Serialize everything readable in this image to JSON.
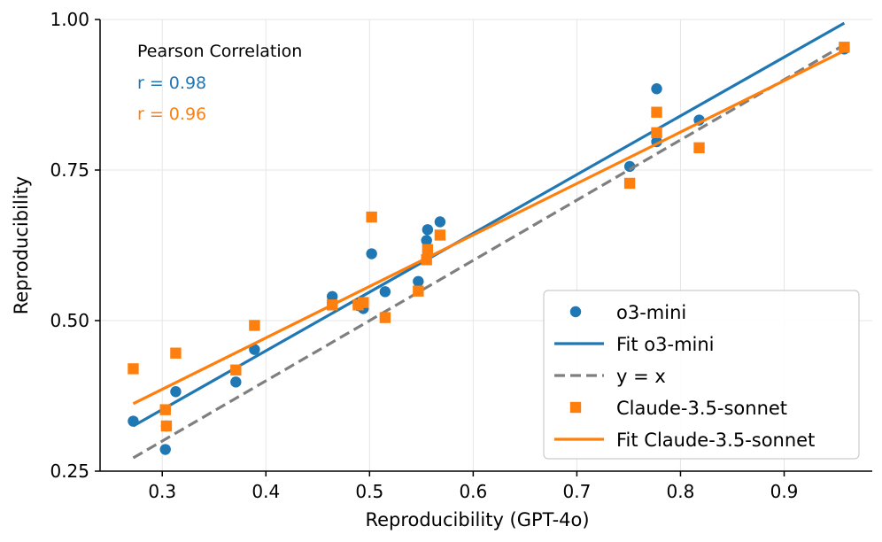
{
  "chart_data": {
    "type": "scatter",
    "xlabel": "Reproducibility (GPT-4o)",
    "ylabel": "Reproducibility",
    "xlim": [
      0.24,
      0.985
    ],
    "ylim": [
      0.25,
      1.0
    ],
    "xticks": [
      0.3,
      0.4,
      0.5,
      0.6,
      0.7,
      0.8,
      0.9
    ],
    "xtick_labels": [
      "0.3",
      "0.4",
      "0.5",
      "0.6",
      "0.7",
      "0.8",
      "0.9"
    ],
    "yticks": [
      0.25,
      0.5,
      0.75,
      1.0
    ],
    "ytick_labels": [
      "0.25",
      "0.50",
      "0.75",
      "1.00"
    ],
    "grid": true,
    "legend_position": "bottom-right",
    "annotations": {
      "title": "Pearson Correlation",
      "r_o3": "r = 0.98",
      "r_claude": "r = 0.96"
    },
    "series": [
      {
        "name": "o3-mini",
        "kind": "scatter",
        "marker": "circle",
        "color": "#1f77b4",
        "points": [
          [
            0.272,
            0.333
          ],
          [
            0.303,
            0.286
          ],
          [
            0.304,
            0.325
          ],
          [
            0.313,
            0.382
          ],
          [
            0.371,
            0.398
          ],
          [
            0.389,
            0.452
          ],
          [
            0.464,
            0.54
          ],
          [
            0.489,
            0.525
          ],
          [
            0.494,
            0.52
          ],
          [
            0.502,
            0.611
          ],
          [
            0.515,
            0.548
          ],
          [
            0.547,
            0.565
          ],
          [
            0.555,
            0.633
          ],
          [
            0.556,
            0.651
          ],
          [
            0.568,
            0.664
          ],
          [
            0.751,
            0.756
          ],
          [
            0.777,
            0.885
          ],
          [
            0.777,
            0.797
          ],
          [
            0.818,
            0.833
          ],
          [
            0.958,
            0.951
          ]
        ]
      },
      {
        "name": "Fit o3-mini",
        "kind": "line",
        "style": "solid",
        "color": "#1f77b4",
        "points": [
          [
            0.272,
            0.325
          ],
          [
            0.958,
            0.994
          ]
        ]
      },
      {
        "name": "y = x",
        "kind": "line",
        "style": "dashed",
        "color": "#7f7f7f",
        "points": [
          [
            0.272,
            0.272
          ],
          [
            0.958,
            0.958
          ]
        ]
      },
      {
        "name": "Claude-3.5-sonnet",
        "kind": "scatter",
        "marker": "square",
        "color": "#ff7f0e",
        "points": [
          [
            0.272,
            0.42
          ],
          [
            0.303,
            0.352
          ],
          [
            0.304,
            0.325
          ],
          [
            0.313,
            0.446
          ],
          [
            0.371,
            0.418
          ],
          [
            0.389,
            0.492
          ],
          [
            0.464,
            0.526
          ],
          [
            0.489,
            0.526
          ],
          [
            0.494,
            0.53
          ],
          [
            0.502,
            0.672
          ],
          [
            0.515,
            0.505
          ],
          [
            0.547,
            0.549
          ],
          [
            0.555,
            0.601
          ],
          [
            0.556,
            0.618
          ],
          [
            0.568,
            0.642
          ],
          [
            0.751,
            0.728
          ],
          [
            0.777,
            0.846
          ],
          [
            0.777,
            0.812
          ],
          [
            0.818,
            0.787
          ],
          [
            0.958,
            0.954
          ]
        ]
      },
      {
        "name": "Fit Claude-3.5-sonnet",
        "kind": "line",
        "style": "solid",
        "color": "#ff7f0e",
        "points": [
          [
            0.272,
            0.362
          ],
          [
            0.958,
            0.948
          ]
        ]
      }
    ]
  }
}
